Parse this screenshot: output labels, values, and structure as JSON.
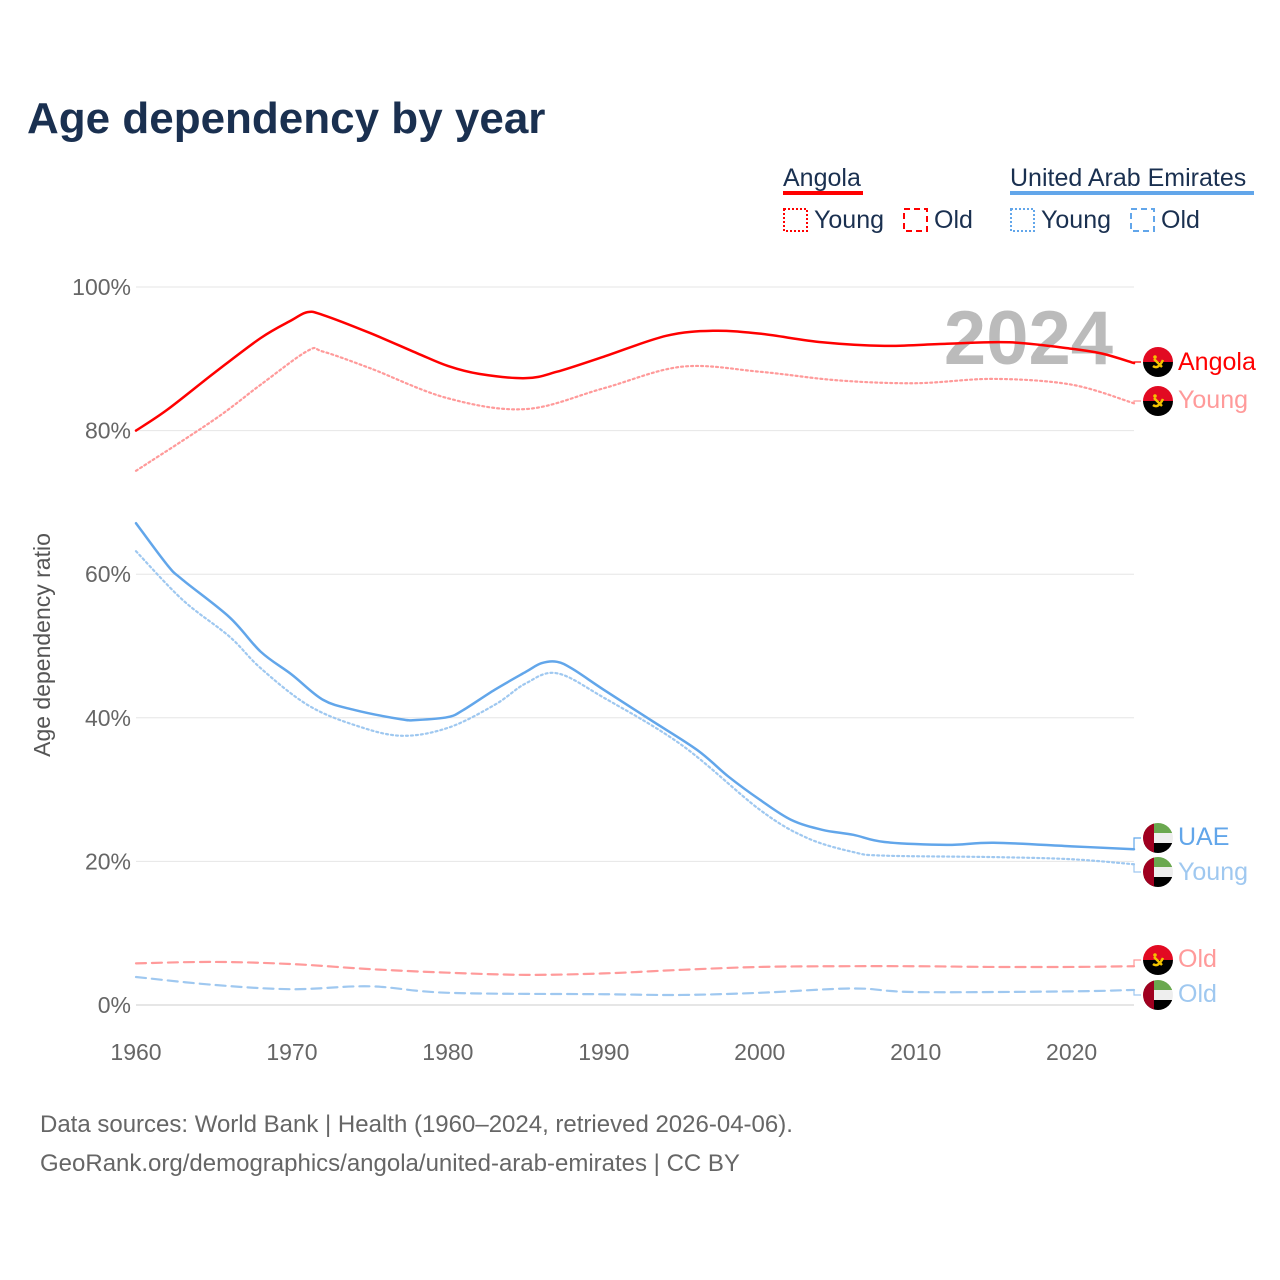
{
  "title": "Age dependency by year",
  "legend": {
    "groups": [
      {
        "name": "Angola",
        "color": "#ff0000",
        "items": [
          "Young",
          "Old"
        ]
      },
      {
        "name": "United Arab Emirates",
        "color": "#62a6ea",
        "items": [
          "Young",
          "Old"
        ]
      }
    ]
  },
  "year_watermark": "2024",
  "end_labels": {
    "angola_total": "Angola",
    "angola_young": "Young",
    "uae_total": "UAE",
    "uae_young": "Young",
    "angola_old": "Old",
    "uae_old": "Old"
  },
  "footer": {
    "line1": "Data sources: World Bank | Health (1960–2024, retrieved 2026-04-06).",
    "line2": "GeoRank.org/demographics/angola/united-arab-emirates | CC BY"
  },
  "chart_data": {
    "type": "line",
    "title": "Age dependency by year",
    "xlabel": "",
    "ylabel": "Age dependency ratio",
    "xlim": [
      1960,
      2024
    ],
    "ylim": [
      0,
      100
    ],
    "xticks": [
      "1960",
      "1970",
      "1980",
      "1990",
      "2000",
      "2010",
      "2020"
    ],
    "yticks": [
      "0%",
      "20%",
      "40%",
      "60%",
      "80%",
      "100%"
    ],
    "grid": true,
    "legend_position": "top-right",
    "series": [
      {
        "name": "Angola",
        "style": "solid",
        "color": "#ff0000",
        "points": [
          [
            1960,
            80.0
          ],
          [
            1962,
            82.9
          ],
          [
            1965,
            88.0
          ],
          [
            1968,
            92.9
          ],
          [
            1970,
            95.4
          ],
          [
            1971,
            96.5
          ],
          [
            1972,
            96.1
          ],
          [
            1975,
            93.6
          ],
          [
            1978,
            90.8
          ],
          [
            1980,
            89.0
          ],
          [
            1982,
            87.9
          ],
          [
            1985,
            87.3
          ],
          [
            1987,
            88.2
          ],
          [
            1990,
            90.3
          ],
          [
            1994,
            93.2
          ],
          [
            1997,
            93.9
          ],
          [
            2000,
            93.5
          ],
          [
            2004,
            92.3
          ],
          [
            2008,
            91.8
          ],
          [
            2012,
            92.1
          ],
          [
            2016,
            92.3
          ],
          [
            2020,
            91.4
          ],
          [
            2022,
            90.7
          ],
          [
            2024,
            89.4
          ]
        ]
      },
      {
        "name": "Angola Young",
        "style": "dotted",
        "color": "#ff9a9a",
        "points": [
          [
            1960,
            74.4
          ],
          [
            1965,
            81.5
          ],
          [
            1968,
            86.4
          ],
          [
            1971,
            91.1
          ],
          [
            1972,
            91.0
          ],
          [
            1975,
            88.7
          ],
          [
            1980,
            84.5
          ],
          [
            1985,
            83.0
          ],
          [
            1990,
            85.9
          ],
          [
            1995,
            88.9
          ],
          [
            2000,
            88.2
          ],
          [
            2005,
            87.0
          ],
          [
            2010,
            86.6
          ],
          [
            2015,
            87.2
          ],
          [
            2020,
            86.4
          ],
          [
            2024,
            83.8
          ]
        ]
      },
      {
        "name": "Angola Old",
        "style": "dashed",
        "color": "#ff9a9a",
        "points": [
          [
            1960,
            5.8
          ],
          [
            1965,
            6.0
          ],
          [
            1970,
            5.7
          ],
          [
            1975,
            5.0
          ],
          [
            1980,
            4.5
          ],
          [
            1985,
            4.2
          ],
          [
            1990,
            4.4
          ],
          [
            1995,
            4.9
          ],
          [
            2000,
            5.3
          ],
          [
            2005,
            5.4
          ],
          [
            2010,
            5.4
          ],
          [
            2015,
            5.3
          ],
          [
            2020,
            5.3
          ],
          [
            2024,
            5.4
          ]
        ]
      },
      {
        "name": "United Arab Emirates",
        "style": "solid",
        "color": "#62a6ea",
        "points": [
          [
            1960,
            67.1
          ],
          [
            1962,
            61.3
          ],
          [
            1963,
            59.2
          ],
          [
            1966,
            54.0
          ],
          [
            1968,
            49.2
          ],
          [
            1970,
            46.0
          ],
          [
            1972,
            42.5
          ],
          [
            1974,
            41.1
          ],
          [
            1977,
            39.8
          ],
          [
            1978,
            39.7
          ],
          [
            1980,
            40.1
          ],
          [
            1981,
            41.1
          ],
          [
            1983,
            43.9
          ],
          [
            1985,
            46.4
          ],
          [
            1986,
            47.6
          ],
          [
            1987,
            47.8
          ],
          [
            1988,
            46.8
          ],
          [
            1990,
            43.9
          ],
          [
            1993,
            39.7
          ],
          [
            1996,
            35.5
          ],
          [
            1998,
            31.8
          ],
          [
            2000,
            28.6
          ],
          [
            2002,
            25.8
          ],
          [
            2004,
            24.4
          ],
          [
            2006,
            23.7
          ],
          [
            2008,
            22.7
          ],
          [
            2012,
            22.3
          ],
          [
            2015,
            22.6
          ],
          [
            2020,
            22.1
          ],
          [
            2024,
            21.7
          ]
        ]
      },
      {
        "name": "United Arab Emirates Young",
        "style": "dotted",
        "color": "#9fc8f0",
        "points": [
          [
            1960,
            63.2
          ],
          [
            1963,
            56.4
          ],
          [
            1966,
            51.3
          ],
          [
            1968,
            46.9
          ],
          [
            1971,
            41.8
          ],
          [
            1974,
            39.0
          ],
          [
            1977,
            37.5
          ],
          [
            1980,
            38.6
          ],
          [
            1983,
            41.8
          ],
          [
            1985,
            44.8
          ],
          [
            1987,
            46.2
          ],
          [
            1990,
            42.8
          ],
          [
            1995,
            36.2
          ],
          [
            2000,
            27.2
          ],
          [
            2003,
            23.3
          ],
          [
            2006,
            21.3
          ],
          [
            2008,
            20.8
          ],
          [
            2015,
            20.6
          ],
          [
            2020,
            20.3
          ],
          [
            2024,
            19.6
          ]
        ]
      },
      {
        "name": "United Arab Emirates Old",
        "style": "dashed",
        "color": "#9fc8f0",
        "points": [
          [
            1960,
            3.9
          ],
          [
            1965,
            2.8
          ],
          [
            1970,
            2.2
          ],
          [
            1975,
            2.6
          ],
          [
            1980,
            1.7
          ],
          [
            1990,
            1.5
          ],
          [
            1995,
            1.4
          ],
          [
            2000,
            1.7
          ],
          [
            2006,
            2.3
          ],
          [
            2010,
            1.8
          ],
          [
            2020,
            1.9
          ],
          [
            2024,
            2.1
          ]
        ]
      }
    ]
  }
}
